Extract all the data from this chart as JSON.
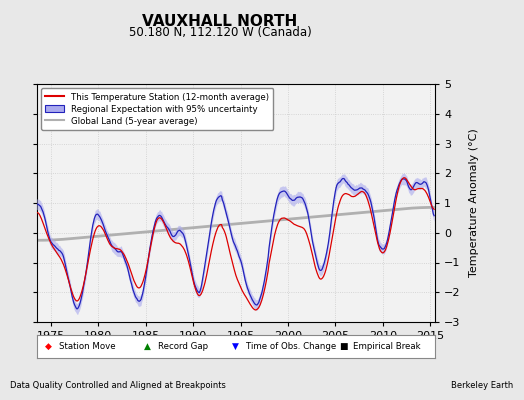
{
  "title": "VAUXHALL NORTH",
  "subtitle": "50.180 N, 112.120 W (Canada)",
  "ylabel": "Temperature Anomaly (°C)",
  "xlabel_left": "Data Quality Controlled and Aligned at Breakpoints",
  "xlabel_right": "Berkeley Earth",
  "ylim": [
    -3,
    5
  ],
  "xlim": [
    1973.5,
    2015.5
  ],
  "xticks": [
    1975,
    1980,
    1985,
    1990,
    1995,
    2000,
    2005,
    2010,
    2015
  ],
  "yticks": [
    -3,
    -2,
    -1,
    0,
    1,
    2,
    3,
    4,
    5
  ],
  "bg_color": "#e8e8e8",
  "plot_bg_color": "#f2f2f2",
  "station_color": "#dd0000",
  "regional_color": "#2222bb",
  "regional_fill_color": "#aaaaee",
  "global_color": "#b0b0b0",
  "legend_labels": [
    "This Temperature Station (12-month average)",
    "Regional Expectation with 95% uncertainty",
    "Global Land (5-year average)"
  ],
  "seed": 12345,
  "start_year": 1973.5,
  "n_months": 504
}
